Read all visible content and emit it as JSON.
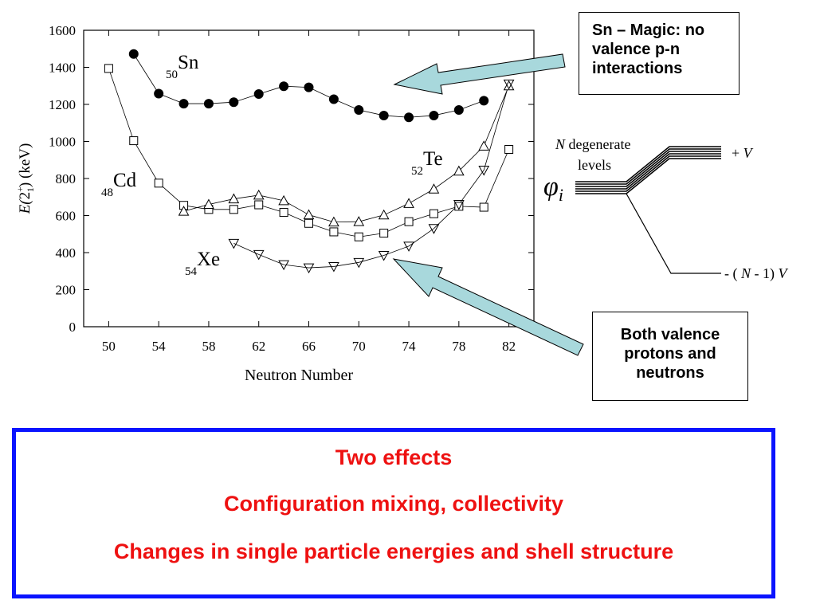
{
  "chart_data": {
    "type": "line",
    "xlabel": "Neutron Number",
    "ylabel_parts": [
      "E(",
      "2",
      "+",
      "1",
      ") (keV)"
    ],
    "xlim": [
      48,
      84
    ],
    "ylim": [
      0,
      1600
    ],
    "xticks": [
      50,
      54,
      58,
      62,
      66,
      70,
      74,
      78,
      82
    ],
    "yticks": [
      0,
      200,
      400,
      600,
      800,
      1000,
      1200,
      1400,
      1600
    ],
    "grid": false,
    "series": [
      {
        "element": "Sn",
        "Z": "50",
        "marker": "filled-circle",
        "color": "#000000",
        "x": [
          52,
          54,
          56,
          58,
          60,
          62,
          64,
          66,
          68,
          70,
          72,
          74,
          76,
          78,
          80
        ],
        "y": [
          1472,
          1258,
          1204,
          1204,
          1212,
          1256,
          1298,
          1292,
          1228,
          1170,
          1140,
          1130,
          1140,
          1170,
          1220
        ]
      },
      {
        "element": "Cd",
        "Z": "48",
        "marker": "open-square",
        "color": "#000000",
        "x": [
          50,
          52,
          54,
          56,
          58,
          60,
          62,
          64,
          66,
          68,
          70,
          72,
          74,
          76,
          78,
          80,
          82
        ],
        "y": [
          1394,
          1004,
          775,
          655,
          633,
          633,
          658,
          617,
          558,
          512,
          485,
          505,
          567,
          610,
          650,
          645,
          957
        ]
      },
      {
        "element": "Te",
        "Z": "52",
        "marker": "open-triangle-up",
        "color": "#000000",
        "x": [
          56,
          58,
          60,
          62,
          64,
          66,
          68,
          70,
          72,
          74,
          76,
          78,
          80,
          82
        ],
        "y": [
          623,
          660,
          690,
          710,
          680,
          604,
          565,
          567,
          603,
          665,
          743,
          840,
          975,
          1300
        ]
      },
      {
        "element": "Xe",
        "Z": "54",
        "marker": "open-triangle-down",
        "color": "#000000",
        "x": [
          60,
          62,
          64,
          66,
          68,
          70,
          72,
          74,
          76,
          78,
          80,
          82
        ],
        "y": [
          450,
          390,
          335,
          318,
          325,
          347,
          385,
          435,
          530,
          660,
          845,
          1310
        ]
      }
    ]
  },
  "level_diagram": {
    "top_label_italic": "N",
    "top_label_1": " degenerate",
    "top_label_2": "levels",
    "phi": "φ",
    "phi_sub": "i",
    "plus_label": "+ ",
    "plus_var": "V",
    "minus_label_1": "- ( ",
    "minus_var_n": "N",
    "minus_label_2": " - 1) ",
    "minus_var_v": "V"
  },
  "callouts": {
    "sn_magic": [
      "Sn – Magic: no",
      "valence p-n",
      "interactions"
    ],
    "both_valence": [
      "Both valence",
      "protons and",
      "neutrons"
    ]
  },
  "arrow_color": "#a8d8dc",
  "summary": {
    "line1": "Two effects",
    "line2": "Configuration mixing, collectivity",
    "line3": "Changes in single particle energies and shell structure",
    "border_color": "#0a14ff",
    "text_color": "#ee1111"
  }
}
